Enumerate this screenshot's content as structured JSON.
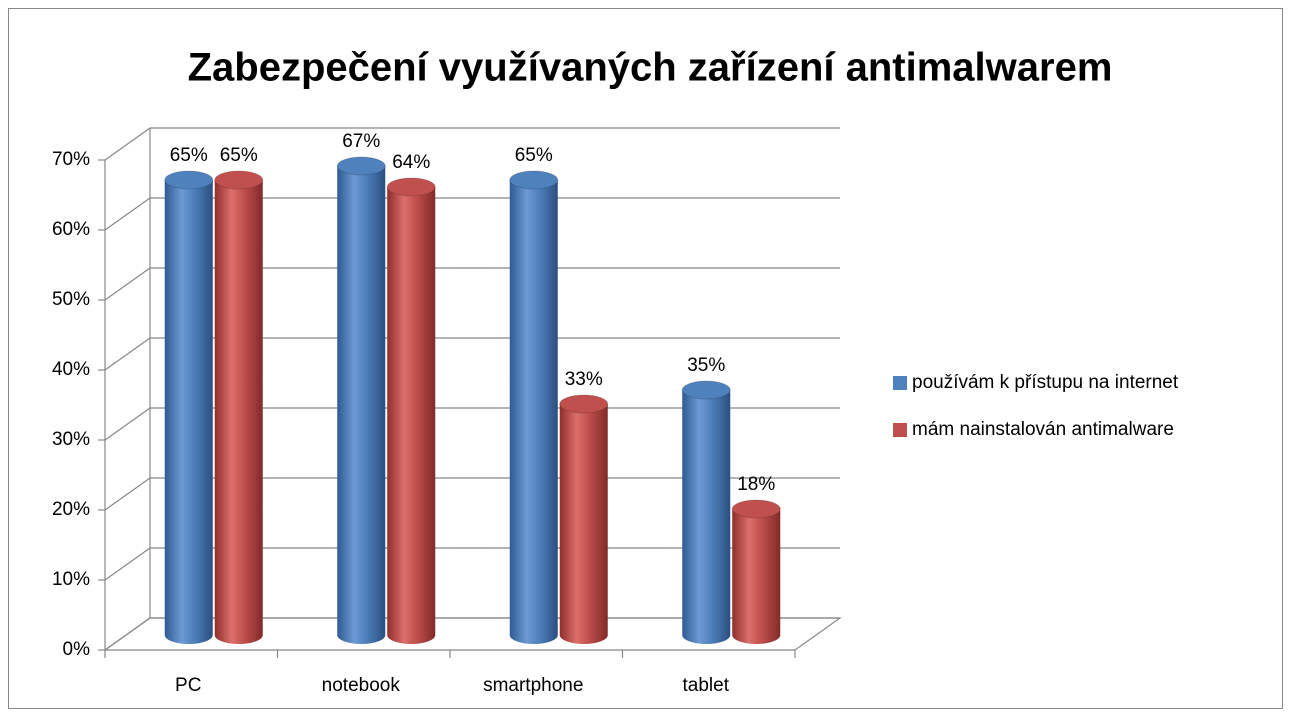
{
  "chart_data": {
    "type": "bar3d",
    "title": "Zabezpečení využívaných zařízení antimalwarem",
    "categories": [
      "PC",
      "notebook",
      "smartphone",
      "tablet"
    ],
    "series": [
      {
        "name": "používám k přístupu na internet",
        "color": "#4f81bd",
        "values": [
          65,
          67,
          65,
          35
        ],
        "value_labels": [
          "65%",
          "67%",
          "65%",
          "35%"
        ]
      },
      {
        "name": "mám nainstalován antimalware",
        "color": "#c0504d",
        "values": [
          65,
          64,
          33,
          18
        ],
        "value_labels": [
          "65%",
          "64%",
          "33%",
          "18%"
        ]
      }
    ],
    "ylim": [
      0,
      70
    ],
    "yticks": [
      {
        "value": 0,
        "label": "0%"
      },
      {
        "value": 10,
        "label": "10%"
      },
      {
        "value": 20,
        "label": "20%"
      },
      {
        "value": 30,
        "label": "30%"
      },
      {
        "value": 40,
        "label": "40%"
      },
      {
        "value": 50,
        "label": "50%"
      },
      {
        "value": 60,
        "label": "60%"
      },
      {
        "value": 70,
        "label": "70%"
      }
    ],
    "grid": true,
    "legend": "right"
  }
}
